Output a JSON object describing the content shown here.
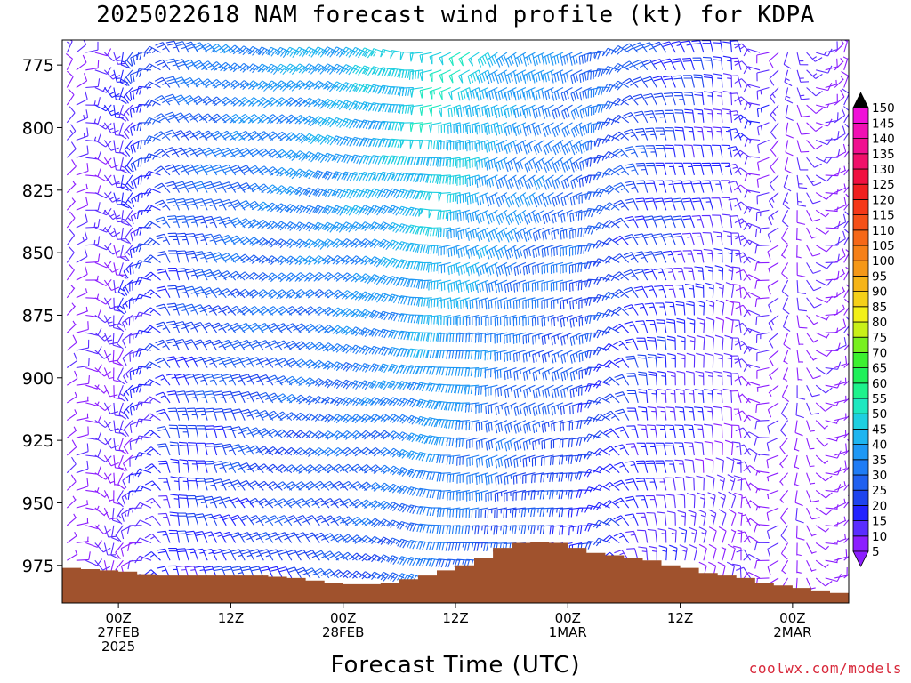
{
  "title": "2025022618 NAM forecast wind profile (kt) for KDPA",
  "credit": "coolwx.com/models",
  "chart_data": {
    "type": "wind_barb_time_height",
    "title": "2025022618 NAM forecast wind profile (kt) for KDPA",
    "xlabel": "Forecast Time (UTC)",
    "ylabel": "",
    "x_start_hours_from_00Z_27FEB": -6,
    "x_end_hours_from_00Z_27FEB": 78,
    "x_ticks": [
      {
        "hour": 0,
        "lines": [
          "00Z",
          "27FEB",
          "2025"
        ]
      },
      {
        "hour": 12,
        "lines": [
          "12Z"
        ]
      },
      {
        "hour": 24,
        "lines": [
          "00Z",
          "28FEB"
        ]
      },
      {
        "hour": 36,
        "lines": [
          "12Z"
        ]
      },
      {
        "hour": 48,
        "lines": [
          "00Z",
          "1MAR"
        ]
      },
      {
        "hour": 60,
        "lines": [
          "12Z"
        ]
      },
      {
        "hour": 72,
        "lines": [
          "00Z",
          "2MAR"
        ]
      }
    ],
    "y_ticks": [
      775,
      800,
      825,
      850,
      875,
      900,
      925,
      950,
      975
    ],
    "ylim_hPa": [
      765,
      990
    ],
    "surface_pressure_hPa": [
      [
        -6,
        976
      ],
      [
        -4,
        976.5
      ],
      [
        -2,
        977
      ],
      [
        0,
        977.5
      ],
      [
        2,
        978.5
      ],
      [
        4,
        979
      ],
      [
        6,
        979
      ],
      [
        8,
        979
      ],
      [
        10,
        979
      ],
      [
        12,
        979
      ],
      [
        14,
        979
      ],
      [
        16,
        979.5
      ],
      [
        18,
        980
      ],
      [
        20,
        981
      ],
      [
        22,
        982
      ],
      [
        24,
        982.5
      ],
      [
        26,
        982.5
      ],
      [
        28,
        982
      ],
      [
        30,
        980.5
      ],
      [
        32,
        979
      ],
      [
        34,
        977
      ],
      [
        36,
        975
      ],
      [
        38,
        972
      ],
      [
        40,
        968
      ],
      [
        42,
        966
      ],
      [
        44,
        965.5
      ],
      [
        46,
        966
      ],
      [
        48,
        968
      ],
      [
        50,
        970
      ],
      [
        52,
        971
      ],
      [
        54,
        972
      ],
      [
        56,
        973
      ],
      [
        58,
        975
      ],
      [
        60,
        976
      ],
      [
        62,
        978
      ],
      [
        64,
        979
      ],
      [
        66,
        980
      ],
      [
        68,
        982
      ],
      [
        70,
        983
      ],
      [
        72,
        984
      ],
      [
        74,
        985
      ],
      [
        76,
        986
      ],
      [
        78,
        986
      ]
    ],
    "wind_field": {
      "note": "speed kt by forecast hour; barb columns at 1-hour steps",
      "speed_kt_by_hour": [
        [
          -6,
          10
        ],
        [
          0,
          14
        ],
        [
          6,
          26
        ],
        [
          12,
          32
        ],
        [
          18,
          36
        ],
        [
          24,
          40
        ],
        [
          30,
          44
        ],
        [
          34,
          50
        ],
        [
          38,
          45
        ],
        [
          42,
          38
        ],
        [
          48,
          32
        ],
        [
          54,
          26
        ],
        [
          60,
          20
        ],
        [
          66,
          14
        ],
        [
          72,
          11
        ],
        [
          78,
          9
        ]
      ],
      "direction_deg_by_hour": [
        [
          -6,
          20
        ],
        [
          6,
          330
        ],
        [
          18,
          300
        ],
        [
          30,
          280
        ],
        [
          36,
          250
        ],
        [
          42,
          235
        ],
        [
          50,
          240
        ],
        [
          56,
          330
        ],
        [
          66,
          350
        ],
        [
          78,
          10
        ]
      ]
    },
    "colorbar": {
      "levels": [
        5,
        10,
        15,
        20,
        25,
        30,
        35,
        40,
        45,
        50,
        55,
        60,
        65,
        70,
        75,
        80,
        85,
        90,
        95,
        100,
        105,
        110,
        115,
        120,
        125,
        130,
        135,
        140,
        145,
        150
      ],
      "colors": [
        "#8c1eff",
        "#5a2dff",
        "#2222ff",
        "#1e44ee",
        "#2060f0",
        "#1f7cf5",
        "#1e98f5",
        "#1eb5f0",
        "#1ecfe0",
        "#1ee8c0",
        "#1ef28c",
        "#20f05a",
        "#3cf030",
        "#78f020",
        "#c8f018",
        "#f2f018",
        "#f5d018",
        "#f5b418",
        "#f59818",
        "#f58018",
        "#f56818",
        "#f55018",
        "#f53818",
        "#f02020",
        "#f01040",
        "#f0106a",
        "#f01090",
        "#f010b4",
        "#f010d8",
        "#000000"
      ]
    },
    "terrain_color": "#a0522d"
  }
}
